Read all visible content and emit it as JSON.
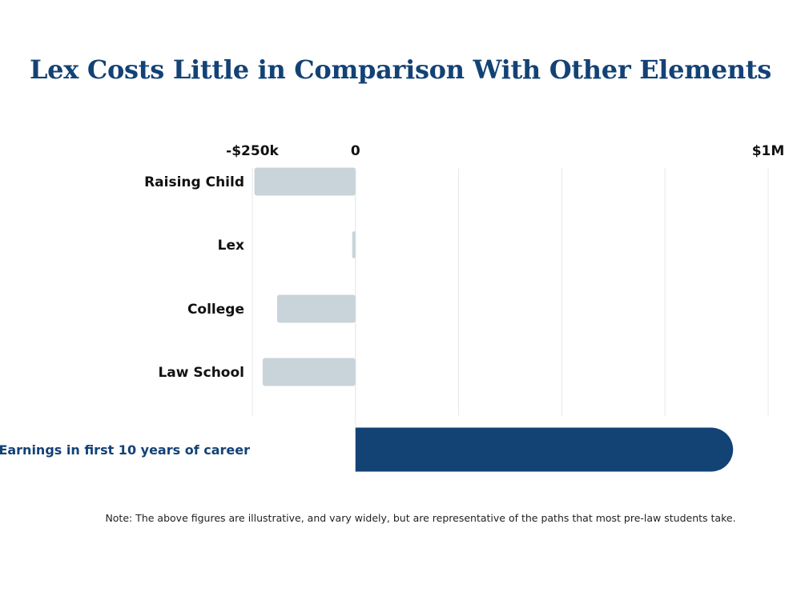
{
  "chart_data": {
    "type": "bar",
    "orientation": "horizontal",
    "title": "Lex Costs Little in Comparison With Other Elements",
    "xlim": [
      -250000,
      1000000
    ],
    "tick_labels": [
      {
        "value": -250000,
        "label": "-$250k"
      },
      {
        "value": 0,
        "label": "0"
      },
      {
        "value": 1000000,
        "label": "$1M"
      }
    ],
    "grid": true,
    "categories": [
      "Raising Child",
      "Lex",
      "College",
      "Law School",
      "Earnings in first 10 years of career"
    ],
    "values": [
      -245000,
      -8000,
      -190000,
      -225000,
      915000
    ],
    "colors": {
      "cost": "#C9D4DA",
      "earnings": "#134275",
      "grid": "#E6E9EC",
      "title": "#134275"
    },
    "note": "Note: The above figures are illustrative, and vary widely, but are representative of the paths that most pre-law students take."
  }
}
